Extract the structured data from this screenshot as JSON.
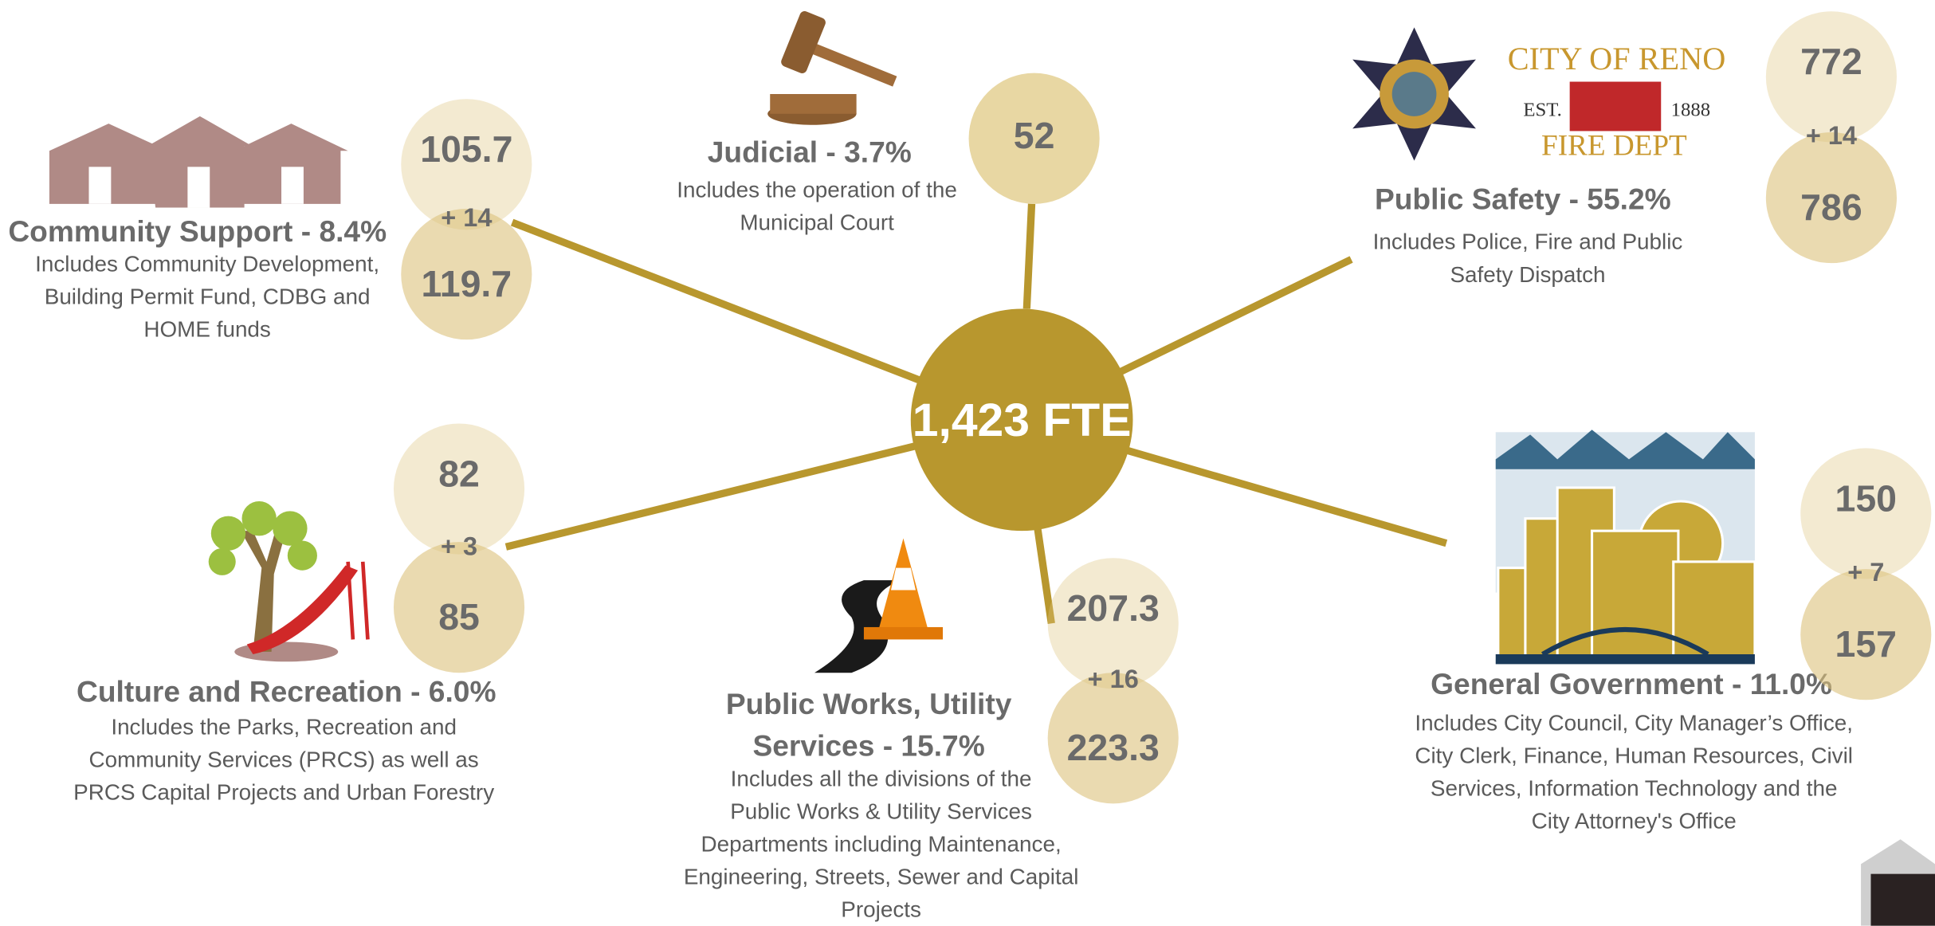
{
  "center": "1,423 FTE",
  "departments": [
    {
      "title": [
        "Community Support - 8.4%"
      ],
      "description": [
        "Includes Community Development,",
        "Building Permit Fund, CDBG and",
        "HOME funds"
      ],
      "bubbles": [
        "105.7",
        "+ 14",
        "119.7"
      ]
    },
    {
      "title": [
        "Judicial - 3.7%"
      ],
      "description": [
        "Includes the operation of the",
        "Municipal Court"
      ],
      "bubbles": [
        "52"
      ]
    },
    {
      "title": [
        "Public Safety - 55.2%"
      ],
      "description": [
        "Includes Police, Fire and Public",
        "Safety Dispatch"
      ],
      "bubbles": [
        "772",
        "+ 14",
        "786"
      ]
    },
    {
      "title": [
        "Culture and Recreation - 6.0%"
      ],
      "description": [
        "Includes the Parks, Recreation and",
        "Community Services (PRCS) as well as",
        "PRCS Capital Projects and Urban Forestry"
      ],
      "bubbles": [
        "82",
        "+ 3",
        "85"
      ]
    },
    {
      "title": [
        "Public Works, Utility",
        "Services - 15.7%"
      ],
      "description": [
        "Includes all the divisions of the",
        "Public Works & Utility Services",
        "Departments including Maintenance,",
        "Engineering, Streets, Sewer and Capital",
        "Projects"
      ],
      "bubbles": [
        "207.3",
        "+ 16",
        "223.3"
      ]
    },
    {
      "title": [
        "General Government - 11.0%"
      ],
      "description": [
        "Includes City Council, City Manager’s Office,",
        "City Clerk, Finance, Human Resources, Civil",
        "Services, Information Technology and the",
        "City Attorney's Office"
      ],
      "bubbles": [
        "150",
        "+ 7",
        "157"
      ]
    }
  ],
  "fire_logo": {
    "top": "CITY OF RENO",
    "est": "EST.",
    "year": "1888",
    "bottom": "FIRE DEPT"
  }
}
